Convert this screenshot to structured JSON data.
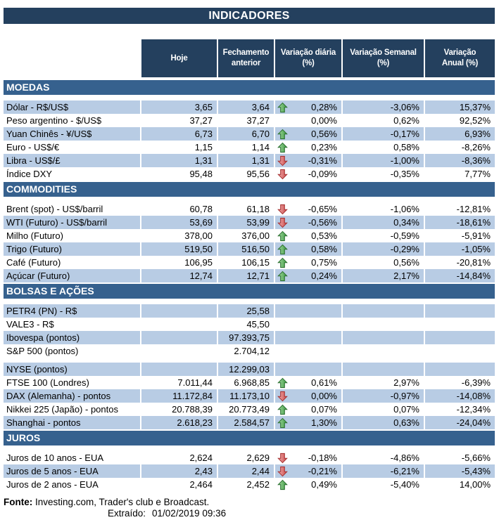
{
  "title": "INDICADORES",
  "columns": {
    "hoje": "Hoje",
    "fechamento": "Fechamento\nanterior",
    "diaria": "Variação diária\n(%)",
    "semanal": "Variação Semanal\n(%)",
    "anual": "Variação\nAnual (%)"
  },
  "colors": {
    "title_navy": "#24405E",
    "section_blue": "#36618E",
    "band_blue": "#B8CCE4",
    "arrow_up_green": "#3C9B42",
    "arrow_down_red": "#C94848"
  },
  "footer": {
    "fonte_label": "Fonte:",
    "fonte_text": "Investing.com, Trader's club e Broadcast.",
    "extraido_label": "Extraído:",
    "extraido_value": "01/02/2019 09:36"
  },
  "chart_data": {
    "type": "table",
    "title": "INDICADORES",
    "columns": [
      "",
      "Hoje",
      "Fechamento anterior",
      "Variação diária (%)",
      "Variação Semanal (%)",
      "Variação Anual (%)"
    ],
    "sections": [
      {
        "name": "MOEDAS",
        "first_row_shaded": true,
        "rows": [
          {
            "label": "Dólar - R$/US$",
            "hoje": "3,65",
            "fechamento": "3,64",
            "arrow": "up",
            "diaria": "0,28%",
            "semanal": "-3,06%",
            "anual": "15,37%"
          },
          {
            "label": "Peso argentino - $/US$",
            "hoje": "37,27",
            "fechamento": "37,27",
            "arrow": "none",
            "diaria": "0,00%",
            "semanal": "0,62%",
            "anual": "92,52%"
          },
          {
            "label": "Yuan Chinês - ¥/US$",
            "hoje": "6,73",
            "fechamento": "6,70",
            "arrow": "up",
            "diaria": "0,56%",
            "semanal": "-0,17%",
            "anual": "6,93%"
          },
          {
            "label": "Euro - US$/€",
            "hoje": "1,15",
            "fechamento": "1,14",
            "arrow": "up",
            "diaria": "0,23%",
            "semanal": "0,58%",
            "anual": "-8,26%"
          },
          {
            "label": "Libra - US$/£",
            "hoje": "1,31",
            "fechamento": "1,31",
            "arrow": "down",
            "diaria": "-0,31%",
            "semanal": "-1,00%",
            "anual": "-8,36%"
          },
          {
            "label": "Índice DXY",
            "hoje": "95,48",
            "fechamento": "95,56",
            "arrow": "down",
            "diaria": "-0,09%",
            "semanal": "-0,35%",
            "anual": "7,77%"
          }
        ]
      },
      {
        "name": "COMMODITIES",
        "first_row_shaded": false,
        "rows": [
          {
            "label": "Brent (spot) - US$/barril",
            "hoje": "60,78",
            "fechamento": "61,18",
            "arrow": "down",
            "diaria": "-0,65%",
            "semanal": "-1,06%",
            "anual": "-12,81%"
          },
          {
            "label": "WTI (Futuro) - US$/barril",
            "hoje": "53,69",
            "fechamento": "53,99",
            "arrow": "down",
            "diaria": "-0,56%",
            "semanal": "0,34%",
            "anual": "-18,61%"
          },
          {
            "label": "Milho (Futuro)",
            "hoje": "378,00",
            "fechamento": "376,00",
            "arrow": "up",
            "diaria": "0,53%",
            "semanal": "-0,59%",
            "anual": "-5,91%"
          },
          {
            "label": "Trigo (Futuro)",
            "hoje": "519,50",
            "fechamento": "516,50",
            "arrow": "up",
            "diaria": "0,58%",
            "semanal": "-0,29%",
            "anual": "-1,05%"
          },
          {
            "label": "Café (Futuro)",
            "hoje": "106,95",
            "fechamento": "106,15",
            "arrow": "up",
            "diaria": "0,75%",
            "semanal": "0,56%",
            "anual": "-20,81%"
          },
          {
            "label": "Açúcar (Futuro)",
            "hoje": "12,74",
            "fechamento": "12,71",
            "arrow": "up",
            "diaria": "0,24%",
            "semanal": "2,17%",
            "anual": "-14,84%"
          }
        ]
      },
      {
        "name": "BOLSAS E AÇÕES",
        "first_row_shaded": true,
        "rows": [
          {
            "label": "PETR4 (PN) - R$",
            "hoje": "",
            "fechamento": "25,58",
            "arrow": "none",
            "diaria": "",
            "semanal": "",
            "anual": ""
          },
          {
            "label": "VALE3 - R$",
            "hoje": "",
            "fechamento": "45,50",
            "arrow": "none",
            "diaria": "",
            "semanal": "",
            "anual": ""
          },
          {
            "label": "Ibovespa (pontos)",
            "hoje": "",
            "fechamento": "97.393,75",
            "arrow": "none",
            "diaria": "",
            "semanal": "",
            "anual": ""
          },
          {
            "label": "S&P 500 (pontos)",
            "hoje": "",
            "fechamento": "2.704,12",
            "arrow": "none",
            "diaria": "",
            "semanal": "",
            "anual": ""
          },
          {
            "spacer": true
          },
          {
            "label": "NYSE (pontos)",
            "hoje": "",
            "fechamento": "12.299,03",
            "arrow": "none",
            "diaria": "",
            "semanal": "",
            "anual": ""
          },
          {
            "label": "FTSE 100 (Londres)",
            "hoje": "7.011,44",
            "fechamento": "6.968,85",
            "arrow": "up",
            "diaria": "0,61%",
            "semanal": "2,97%",
            "anual": "-6,39%"
          },
          {
            "label": "DAX (Alemanha) - pontos",
            "hoje": "11.172,84",
            "fechamento": "11.173,10",
            "arrow": "down",
            "diaria": "0,00%",
            "semanal": "-0,97%",
            "anual": "-14,08%"
          },
          {
            "label": "Nikkei 225 (Japão) - pontos",
            "hoje": "20.788,39",
            "fechamento": "20.773,49",
            "arrow": "up",
            "diaria": "0,07%",
            "semanal": "0,07%",
            "anual": "-12,34%"
          },
          {
            "label": "Shanghai - pontos",
            "hoje": "2.618,23",
            "fechamento": "2.584,57",
            "arrow": "up",
            "diaria": "1,30%",
            "semanal": "0,63%",
            "anual": "-24,04%"
          }
        ]
      },
      {
        "name": "JUROS",
        "first_row_shaded": false,
        "rows": [
          {
            "label": "Juros de 10 anos - EUA",
            "hoje": "2,624",
            "fechamento": "2,629",
            "arrow": "down",
            "diaria": "-0,18%",
            "semanal": "-4,86%",
            "anual": "-5,66%"
          },
          {
            "label": "Juros de 5 anos - EUA",
            "hoje": "2,43",
            "fechamento": "2,44",
            "arrow": "down",
            "diaria": "-0,21%",
            "semanal": "-6,21%",
            "anual": "-5,43%"
          },
          {
            "label": "Juros de 2 anos - EUA",
            "hoje": "2,464",
            "fechamento": "2,452",
            "arrow": "up",
            "diaria": "0,49%",
            "semanal": "-5,40%",
            "anual": "14,00%"
          }
        ]
      }
    ]
  }
}
